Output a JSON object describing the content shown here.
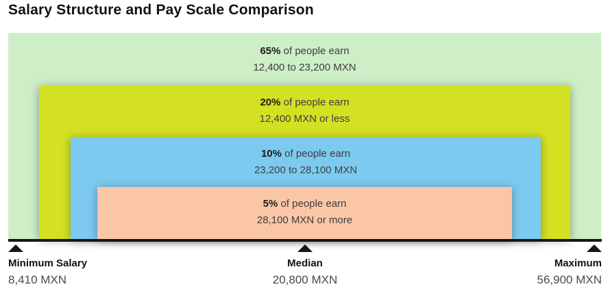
{
  "title": "Salary Structure and Pay Scale Comparison",
  "chart_data": {
    "type": "bar",
    "variant": "nested-range-bands",
    "title": "Salary Structure and Pay Scale Comparison",
    "currency": "MXN",
    "axis_color": "#161616",
    "bands": [
      {
        "percent": "65%",
        "suffix": "of people earn",
        "range": "12,400 to 23,200 MXN",
        "share": 65,
        "color": "#cdeec6"
      },
      {
        "percent": "20%",
        "suffix": "of people earn",
        "range": "12,400 MXN or less",
        "share": 20,
        "color": "#d4e122"
      },
      {
        "percent": "10%",
        "suffix": "of people earn",
        "range": "23,200 to 28,100 MXN",
        "share": 10,
        "color": "#7ccaf0"
      },
      {
        "percent": "5%",
        "suffix": "of people earn",
        "range": "28,100 MXN or more",
        "share": 5,
        "color": "#fac6a6"
      }
    ],
    "axis_markers": [
      {
        "label": "Minimum Salary",
        "value": "8,410 MXN",
        "amount": 8410,
        "position": "left"
      },
      {
        "label": "Median",
        "value": "20,800 MXN",
        "amount": 20800,
        "position": "center"
      },
      {
        "label": "Maximum",
        "value": "56,900 MXN",
        "amount": 56900,
        "position": "right"
      }
    ],
    "layout": {
      "bands_bottom_aligned": true,
      "legend": "none",
      "grid": "off"
    }
  }
}
